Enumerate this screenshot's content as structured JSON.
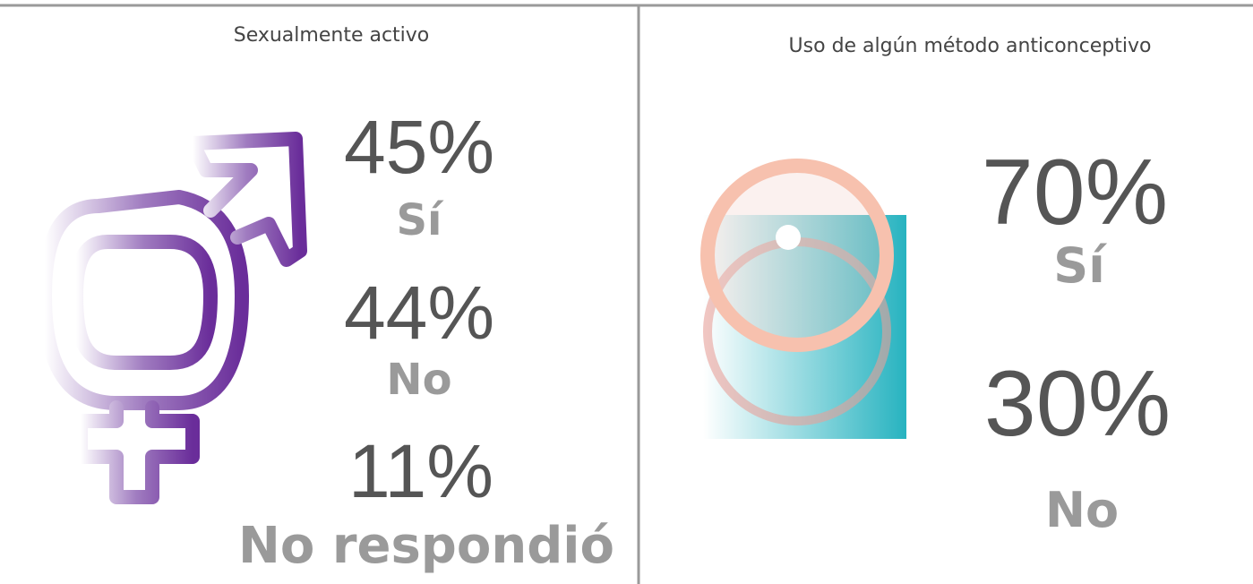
{
  "panels": [
    {
      "title": "Sexualmente activo",
      "stats": [
        {
          "value": "45%",
          "label": "Sí"
        },
        {
          "value": "44%",
          "label": "No"
        },
        {
          "value": "11%",
          "label": "No respondió"
        }
      ]
    },
    {
      "title": "Uso de algún método anticonceptivo",
      "stats": [
        {
          "value": "70%",
          "label": "Sí"
        },
        {
          "value": "30%",
          "label": "No"
        }
      ]
    }
  ]
}
